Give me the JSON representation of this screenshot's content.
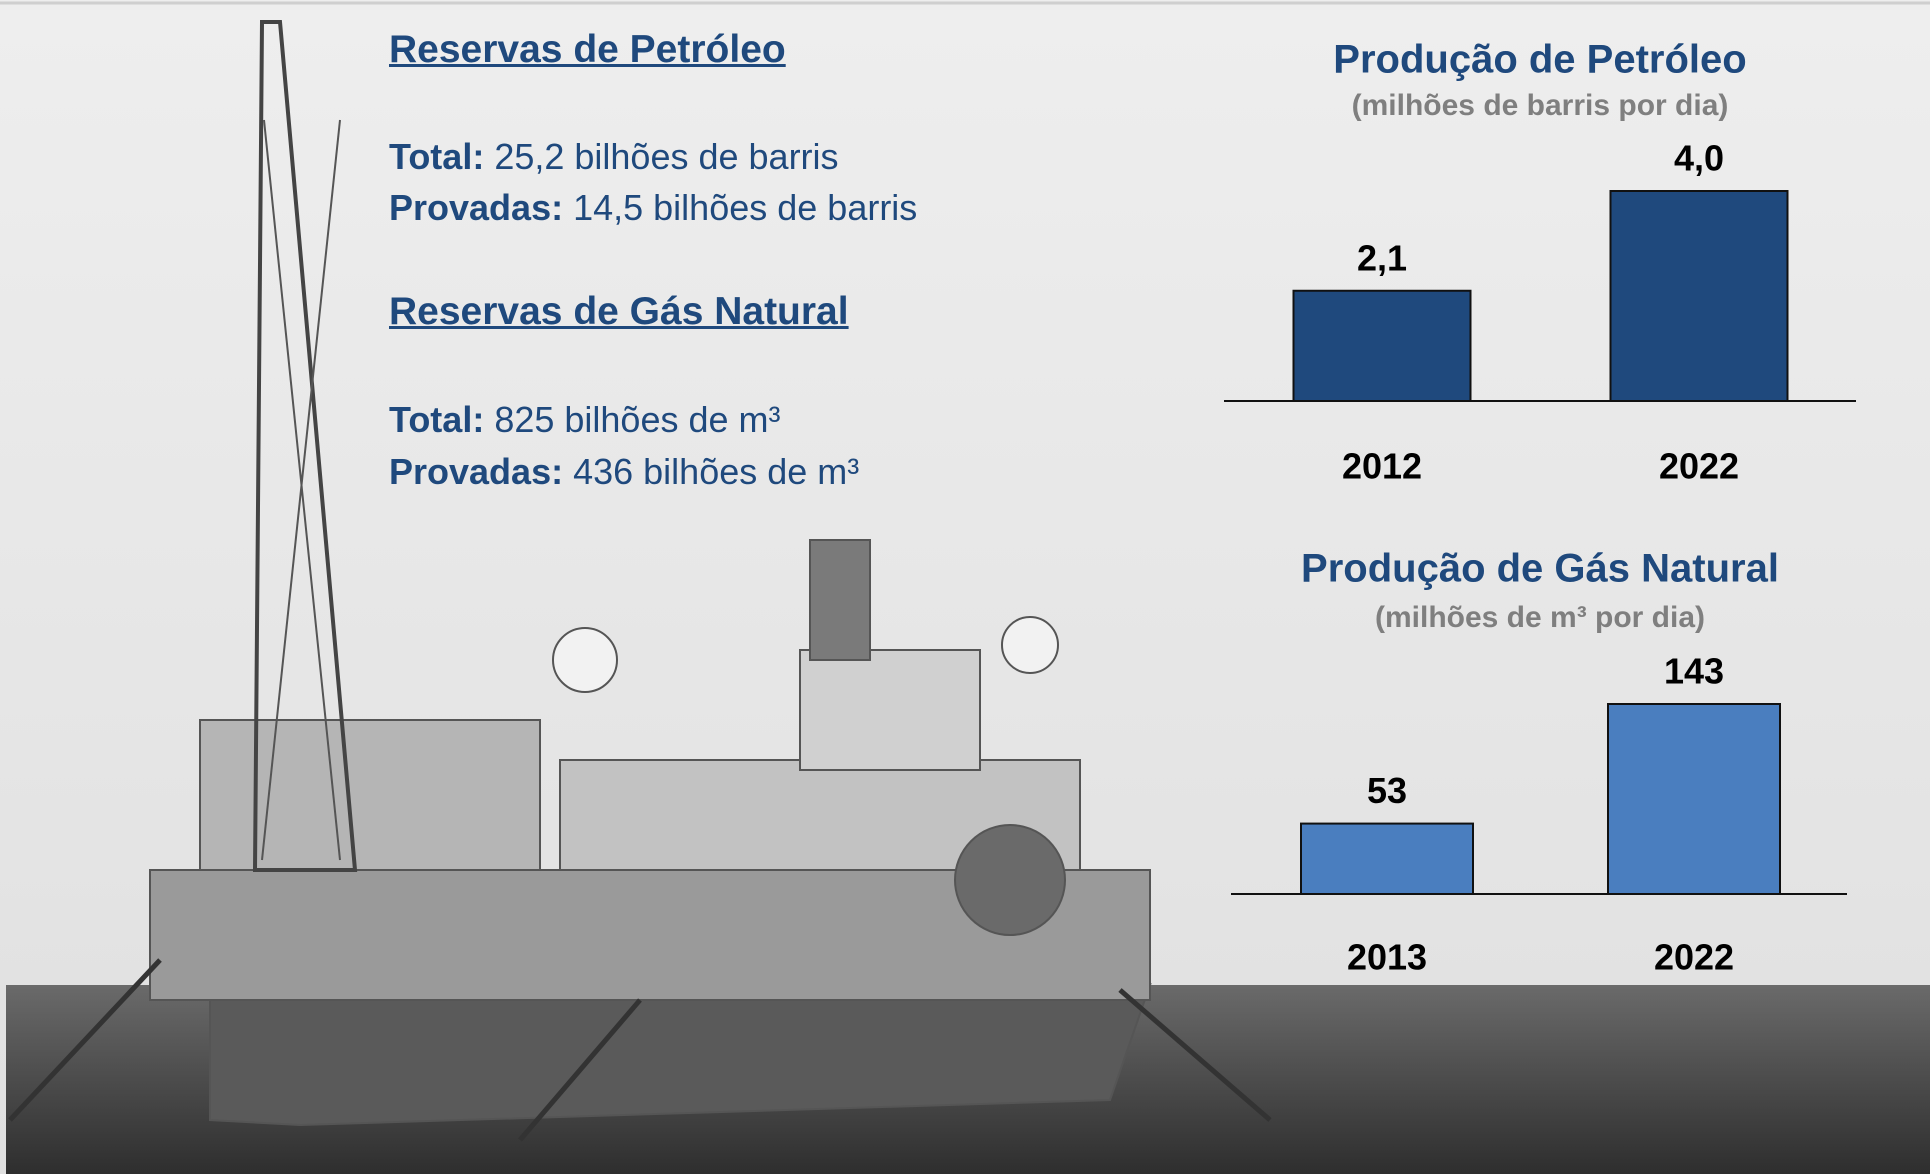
{
  "reserves": [
    {
      "title": "Reservas de Petróleo",
      "total_label": "Total:",
      "total_value": "25,2 bilhões de barris",
      "proven_label": "Provadas:",
      "proven_value": "14,5 bilhões de barris"
    },
    {
      "title": "Reservas de Gás Natural",
      "total_label": "Total:",
      "total_value": "825 bilhões de m³",
      "proven_label": "Provadas:",
      "proven_value": "436 bilhões de m³"
    }
  ],
  "chart_data": [
    {
      "type": "bar",
      "title": "Produção de Petróleo",
      "subtitle": "(milhões de barris por dia)",
      "categories": [
        "2012",
        "2022"
      ],
      "values": [
        2.1,
        4.0
      ],
      "value_labels": [
        "2,1",
        "4,0"
      ],
      "color": "#1f497d"
    },
    {
      "type": "bar",
      "title": "Produção de Gás Natural",
      "subtitle": "(milhões de m³ por dia)",
      "categories": [
        "2013",
        "2022"
      ],
      "values": [
        53,
        143
      ],
      "color": "#4a7ebf"
    }
  ]
}
